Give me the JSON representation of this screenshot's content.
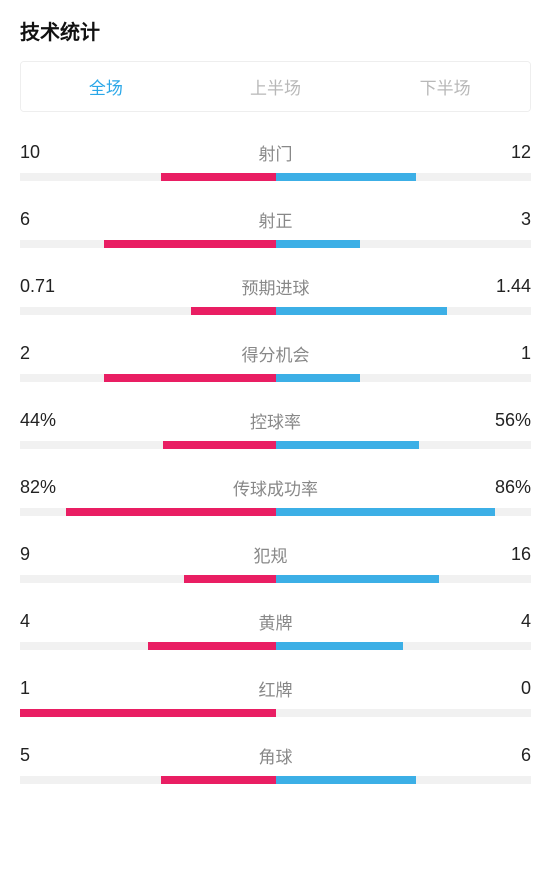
{
  "title": "技术统计",
  "tabs": [
    {
      "label": "全场",
      "active": true
    },
    {
      "label": "上半场",
      "active": false
    },
    {
      "label": "下半场",
      "active": false
    }
  ],
  "colors": {
    "left_bar": "#e91e63",
    "right_bar": "#3cafe6",
    "track": "#f1f1f1",
    "active_tab": "#2aa7e8",
    "inactive_tab": "#b8b8b8",
    "stat_name": "#888888",
    "value": "#222222"
  },
  "stats": [
    {
      "name": "射门",
      "left_value": "10",
      "right_value": "12",
      "left_pct": 45,
      "right_pct": 55
    },
    {
      "name": "射正",
      "left_value": "6",
      "right_value": "3",
      "left_pct": 67,
      "right_pct": 33
    },
    {
      "name": "预期进球",
      "left_value": "0.71",
      "right_value": "1.44",
      "left_pct": 33,
      "right_pct": 67
    },
    {
      "name": "得分机会",
      "left_value": "2",
      "right_value": "1",
      "left_pct": 67,
      "right_pct": 33
    },
    {
      "name": "控球率",
      "left_value": "44%",
      "right_value": "56%",
      "left_pct": 44,
      "right_pct": 56
    },
    {
      "name": "传球成功率",
      "left_value": "82%",
      "right_value": "86%",
      "left_pct": 82,
      "right_pct": 86
    },
    {
      "name": "犯规",
      "left_value": "9",
      "right_value": "16",
      "left_pct": 36,
      "right_pct": 64
    },
    {
      "name": "黄牌",
      "left_value": "4",
      "right_value": "4",
      "left_pct": 50,
      "right_pct": 50
    },
    {
      "name": "红牌",
      "left_value": "1",
      "right_value": "0",
      "left_pct": 100,
      "right_pct": 0
    },
    {
      "name": "角球",
      "left_value": "5",
      "right_value": "6",
      "left_pct": 45,
      "right_pct": 55
    }
  ]
}
